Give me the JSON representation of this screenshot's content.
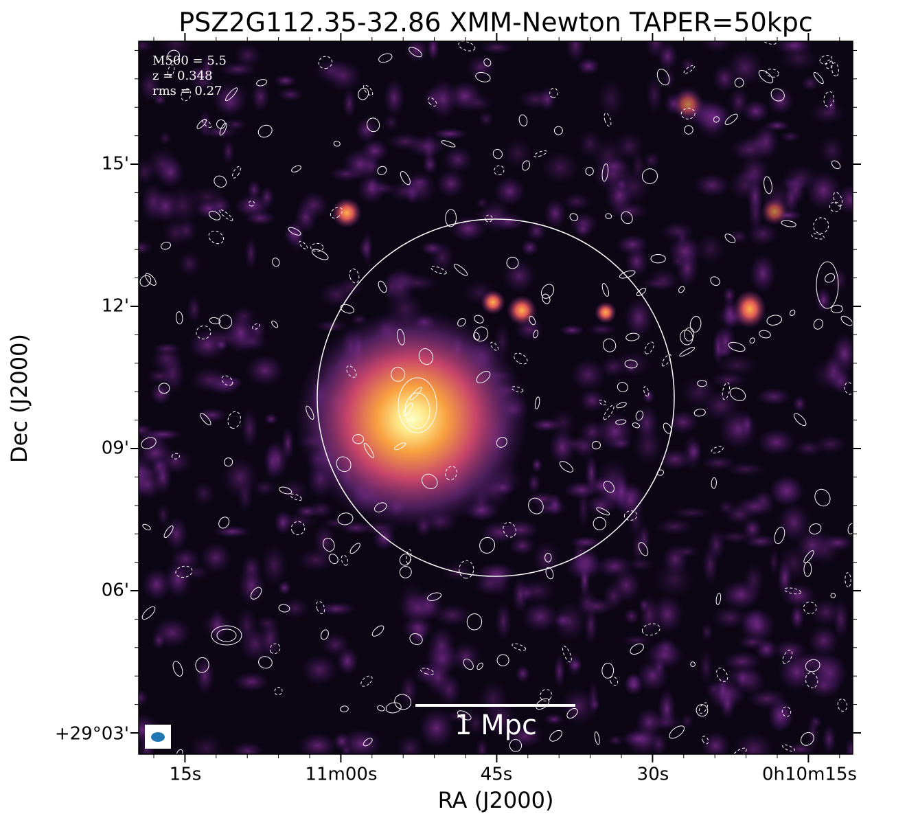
{
  "title": "PSZ2G112.35-32.86 XMM-Newton TAPER=50kpc",
  "annotation": [
    "M500 = 5.5",
    "z = 0.348",
    "rms = 0.27"
  ],
  "x_axis": {
    "label": "RA (J2000)",
    "ticks": [
      "15s",
      "11m00s",
      "45s",
      "30s",
      "0h10m15s"
    ]
  },
  "y_axis": {
    "label": "Dec (J2000)",
    "ticks": [
      "15'",
      "12'",
      "09'",
      "06'",
      "+29°03'"
    ]
  },
  "scale_bar": "1 Mpc"
}
